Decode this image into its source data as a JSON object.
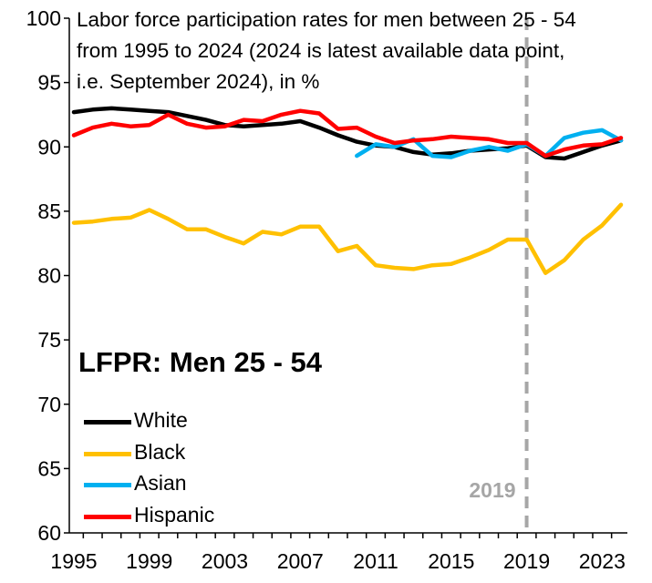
{
  "chart_data": {
    "type": "line",
    "title_lines": [
      "Labor force participation rates for men between 25 - 54",
      "from 1995 to 2024 (2024 is latest available data point,",
      "i.e. September 2024), in %"
    ],
    "label": "LFPR: Men 25 - 54",
    "ylim": [
      60,
      100
    ],
    "yticks": [
      60,
      65,
      70,
      75,
      80,
      85,
      90,
      95,
      100
    ],
    "xlim": [
      1995,
      2024
    ],
    "xticks": [
      1995,
      1999,
      2003,
      2007,
      2011,
      2015,
      2019,
      2023
    ],
    "annotation": {
      "x": 2019,
      "label": "2019",
      "color": "#a6a6a6"
    },
    "series": [
      {
        "name": "White",
        "color": "#000000",
        "x": [
          1995,
          1996,
          1997,
          1998,
          1999,
          2000,
          2001,
          2002,
          2003,
          2004,
          2005,
          2006,
          2007,
          2008,
          2009,
          2010,
          2011,
          2012,
          2013,
          2014,
          2015,
          2016,
          2017,
          2018,
          2019,
          2020,
          2021,
          2022,
          2023,
          2024
        ],
        "values": [
          92.7,
          92.9,
          93.0,
          92.9,
          92.8,
          92.7,
          92.4,
          92.1,
          91.7,
          91.6,
          91.7,
          91.8,
          92.0,
          91.5,
          90.9,
          90.4,
          90.1,
          90.0,
          89.6,
          89.4,
          89.5,
          89.7,
          89.8,
          89.9,
          90.1,
          89.2,
          89.1,
          89.6,
          90.1,
          90.5
        ]
      },
      {
        "name": "Black",
        "color": "#ffc000",
        "x": [
          1995,
          1996,
          1997,
          1998,
          1999,
          2000,
          2001,
          2002,
          2003,
          2004,
          2005,
          2006,
          2007,
          2008,
          2009,
          2010,
          2011,
          2012,
          2013,
          2014,
          2015,
          2016,
          2017,
          2018,
          2019,
          2020,
          2021,
          2022,
          2023,
          2024
        ],
        "values": [
          84.1,
          84.2,
          84.4,
          84.5,
          85.1,
          84.4,
          83.6,
          83.6,
          83.0,
          82.5,
          83.4,
          83.2,
          83.8,
          83.8,
          81.9,
          82.3,
          80.8,
          80.6,
          80.5,
          80.8,
          80.9,
          81.4,
          82.0,
          82.8,
          82.8,
          80.2,
          81.2,
          82.8,
          83.9,
          85.5
        ]
      },
      {
        "name": "Asian",
        "color": "#00b0f0",
        "x": [
          2010,
          2011,
          2012,
          2013,
          2014,
          2015,
          2016,
          2017,
          2018,
          2019,
          2020,
          2021,
          2022,
          2023,
          2024
        ],
        "values": [
          89.3,
          90.2,
          90.0,
          90.6,
          89.3,
          89.2,
          89.7,
          90.0,
          89.7,
          90.2,
          89.3,
          90.7,
          91.1,
          91.3,
          90.5
        ]
      },
      {
        "name": "Hispanic",
        "color": "#ff0000",
        "x": [
          1995,
          1996,
          1997,
          1998,
          1999,
          2000,
          2001,
          2002,
          2003,
          2004,
          2005,
          2006,
          2007,
          2008,
          2009,
          2010,
          2011,
          2012,
          2013,
          2014,
          2015,
          2016,
          2017,
          2018,
          2019,
          2020,
          2021,
          2022,
          2023,
          2024
        ],
        "values": [
          90.9,
          91.5,
          91.8,
          91.6,
          91.7,
          92.5,
          91.8,
          91.5,
          91.6,
          92.1,
          92.0,
          92.5,
          92.8,
          92.6,
          91.4,
          91.5,
          90.8,
          90.3,
          90.5,
          90.6,
          90.8,
          90.7,
          90.6,
          90.3,
          90.3,
          89.3,
          89.8,
          90.1,
          90.2,
          90.7
        ]
      }
    ]
  }
}
